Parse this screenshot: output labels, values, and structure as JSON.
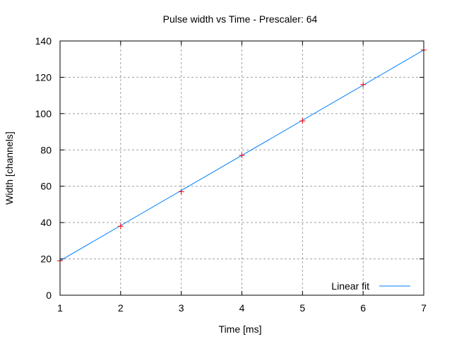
{
  "chart_data": {
    "type": "scatter",
    "title": "Pulse width vs Time - Prescaler: 64",
    "xlabel": "Time [ms]",
    "ylabel": "Width [channels]",
    "xlim": [
      1,
      7
    ],
    "ylim": [
      0,
      140
    ],
    "xticks": [
      1,
      2,
      3,
      4,
      5,
      6,
      7
    ],
    "yticks": [
      0,
      20,
      40,
      60,
      80,
      100,
      120,
      140
    ],
    "grid": true,
    "legend_position": "bottom-right",
    "series": [
      {
        "type": "scatter",
        "marker": "plus",
        "color": "#ff0000",
        "x": [
          1,
          2,
          3,
          4,
          5,
          6,
          7
        ],
        "y": [
          19,
          38,
          57,
          77,
          96,
          116,
          135
        ]
      },
      {
        "type": "line",
        "name": "Linear fit",
        "color": "#0080ff",
        "x": [
          1,
          7
        ],
        "y": [
          19,
          135
        ]
      }
    ]
  }
}
